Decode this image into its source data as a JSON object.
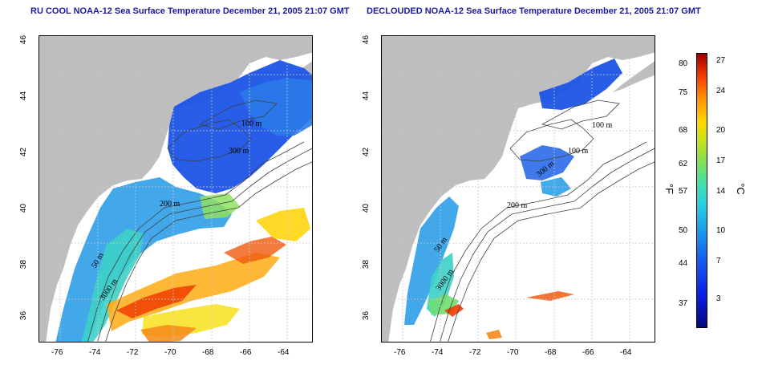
{
  "left_panel": {
    "title": "RU COOL NOAA-12 Sea Surface Temperature December 21, 2005 21:07 GMT",
    "contour_labels": [
      "100 m",
      "300 m",
      "200 m",
      "50 m",
      "3000 m"
    ]
  },
  "right_panel": {
    "title": "DECLOUDED NOAA-12 Sea Surface Temperature December 21, 2005 21:07 GMT",
    "contour_labels": [
      "100 m",
      "300 m",
      "100 m",
      "200 m",
      "50 m",
      "3000 m"
    ]
  },
  "axes": {
    "x_ticks": [
      "-76",
      "-74",
      "-72",
      "-70",
      "-68",
      "-66",
      "-64"
    ],
    "y_ticks": [
      "36",
      "38",
      "40",
      "42",
      "44",
      "46"
    ],
    "lon_range": [
      -77,
      -63
    ],
    "lat_range": [
      35,
      46
    ]
  },
  "colorbar": {
    "fahrenheit_ticks": [
      "80",
      "75",
      "68",
      "62",
      "57",
      "50",
      "44",
      "37"
    ],
    "celsius_ticks": [
      "27",
      "24",
      "20",
      "17",
      "14",
      "10",
      "7",
      "3"
    ],
    "fahrenheit_unit": "°F",
    "celsius_unit": "°C",
    "colors": [
      "#08087a",
      "#0a1ee8",
      "#1aa0ea",
      "#40e0b0",
      "#c6e21c",
      "#ffd800",
      "#f23a00",
      "#9c0000"
    ]
  },
  "colors": {
    "land": "#bebebe",
    "grid": "#c8c8c8",
    "contour": "#404040"
  }
}
